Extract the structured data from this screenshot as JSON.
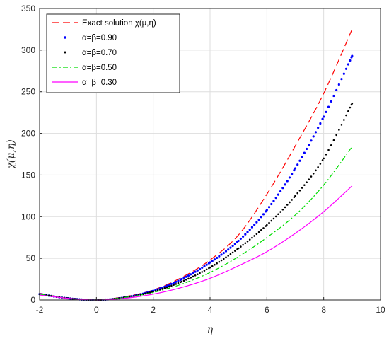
{
  "chart_data": {
    "type": "line",
    "title": "",
    "xlabel": "η",
    "ylabel": "χ(μ,η)",
    "xlim": [
      -2,
      10
    ],
    "ylim": [
      0,
      350
    ],
    "xticks": [
      "-2",
      "0",
      "2",
      "4",
      "6",
      "8",
      "10"
    ],
    "yticks": [
      "0",
      "50",
      "100",
      "150",
      "200",
      "250",
      "300",
      "350"
    ],
    "grid": true,
    "legend_position": "top-left",
    "series": [
      {
        "name": "Exact solution χ(μ,η)",
        "style": "dashed",
        "color": "#ff0000",
        "x": [
          -2,
          -1,
          0,
          1,
          2,
          3,
          4,
          5,
          6,
          7,
          8,
          9
        ],
        "y": [
          8,
          2,
          0,
          4,
          12,
          27,
          48,
          78,
          127,
          185,
          248,
          325
        ]
      },
      {
        "name": "α=β=0.90",
        "style": "dotted-large",
        "color": "#0000ff",
        "x": [
          -2,
          -1,
          0,
          1,
          2,
          3,
          4,
          5,
          6,
          7,
          8,
          9
        ],
        "y": [
          7,
          2,
          0,
          3,
          11,
          25,
          45,
          71,
          108,
          158,
          220,
          293
        ]
      },
      {
        "name": "α=β=0.70",
        "style": "dotted",
        "color": "#000000",
        "x": [
          -2,
          -1,
          0,
          1,
          2,
          3,
          4,
          5,
          6,
          7,
          8,
          9
        ],
        "y": [
          7,
          2,
          0,
          3,
          10,
          22,
          39,
          62,
          90,
          125,
          170,
          236
        ]
      },
      {
        "name": "α=β=0.50",
        "style": "dashdot",
        "color": "#00dd00",
        "x": [
          -2,
          -1,
          0,
          1,
          2,
          3,
          4,
          5,
          6,
          7,
          8,
          9
        ],
        "y": [
          7,
          2,
          0,
          3,
          9,
          19,
          33,
          52,
          75,
          102,
          138,
          184
        ]
      },
      {
        "name": "α=β=0.30",
        "style": "solid",
        "color": "#ff00ff",
        "x": [
          -2,
          -1,
          0,
          1,
          2,
          3,
          4,
          5,
          6,
          7,
          8,
          9
        ],
        "y": [
          6,
          2,
          0,
          2,
          7,
          15,
          26,
          41,
          58,
          80,
          106,
          137
        ]
      }
    ]
  }
}
